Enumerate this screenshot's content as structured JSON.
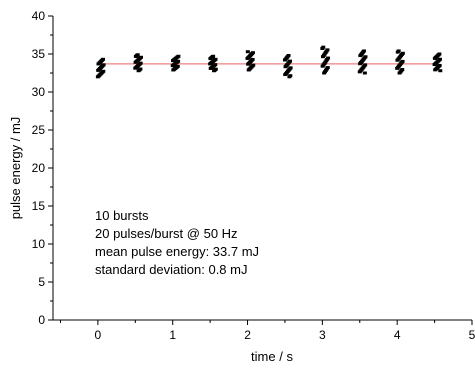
{
  "chart_data": {
    "type": "scatter",
    "xlabel": "time / s",
    "ylabel": "pulse energy / mJ",
    "xlim": [
      -0.6,
      5
    ],
    "ylim": [
      0,
      40
    ],
    "x_ticks": [
      0,
      1,
      2,
      3,
      4,
      5
    ],
    "y_ticks": [
      0,
      5,
      10,
      15,
      20,
      25,
      30,
      35,
      40
    ],
    "grid": false,
    "mean_line": {
      "y": 33.7,
      "x_range": [
        0,
        4.5
      ],
      "color": "#f08080"
    },
    "marker_color": "#000000",
    "bursts": [
      {
        "t": 0.0,
        "min": 32.0,
        "max": 34.3
      },
      {
        "t": 0.5,
        "min": 32.8,
        "max": 34.9
      },
      {
        "t": 1.0,
        "min": 32.9,
        "max": 34.7
      },
      {
        "t": 1.5,
        "min": 32.8,
        "max": 34.7
      },
      {
        "t": 2.0,
        "min": 32.9,
        "max": 35.3
      },
      {
        "t": 2.5,
        "min": 32.0,
        "max": 34.8
      },
      {
        "t": 3.0,
        "min": 32.5,
        "max": 35.9
      },
      {
        "t": 3.5,
        "min": 32.5,
        "max": 35.4
      },
      {
        "t": 4.0,
        "min": 32.5,
        "max": 35.4
      },
      {
        "t": 4.5,
        "min": 32.8,
        "max": 35.0
      }
    ],
    "annotation_lines": [
      "10 bursts",
      "20 pulses/burst @ 50 Hz",
      "mean pulse energy: 33.7 mJ",
      "standard deviation: 0.8 mJ"
    ]
  }
}
